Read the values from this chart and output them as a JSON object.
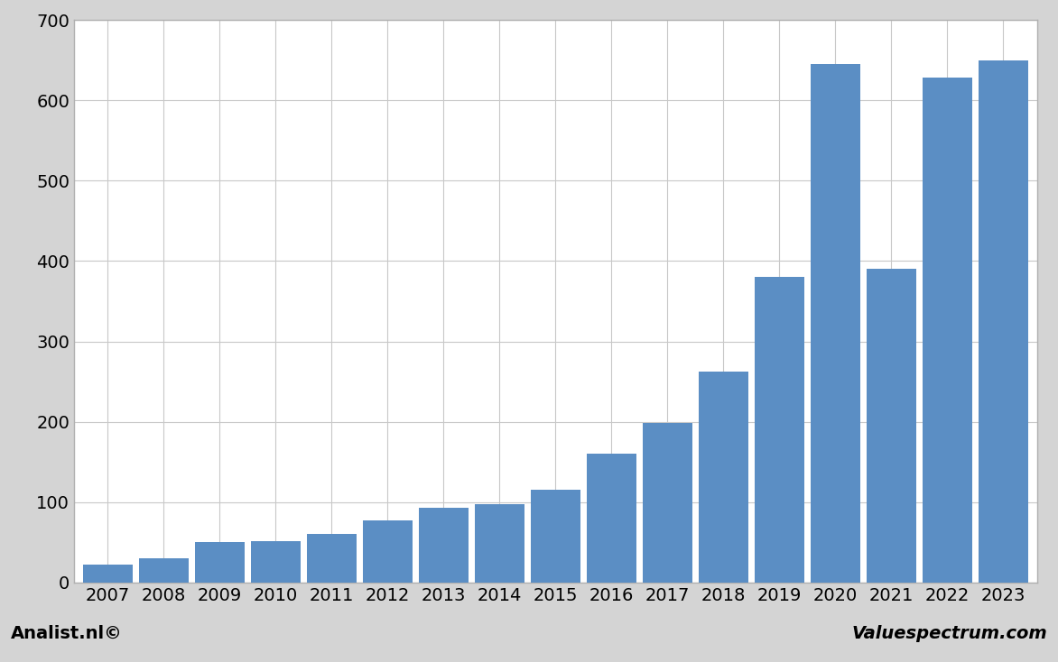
{
  "years": [
    2007,
    2008,
    2009,
    2010,
    2011,
    2012,
    2013,
    2014,
    2015,
    2016,
    2017,
    2018,
    2019,
    2020,
    2021,
    2022,
    2023
  ],
  "values": [
    22,
    30,
    50,
    52,
    60,
    77,
    93,
    97,
    115,
    160,
    198,
    263,
    380,
    645,
    390,
    628,
    650
  ],
  "bar_color": "#5b8ec4",
  "plot_bg_color": "#ffffff",
  "grid_color": "#c8c8c8",
  "border_color": "#b0b0b0",
  "ylim": [
    0,
    700
  ],
  "yticks": [
    0,
    100,
    200,
    300,
    400,
    500,
    600,
    700
  ],
  "tick_fontsize": 14,
  "footer_left": "Analist.nl©",
  "footer_right": "Valuespectrum.com",
  "footer_fontsize": 14,
  "outer_bg_color": "#d4d4d4",
  "bar_width": 0.88
}
